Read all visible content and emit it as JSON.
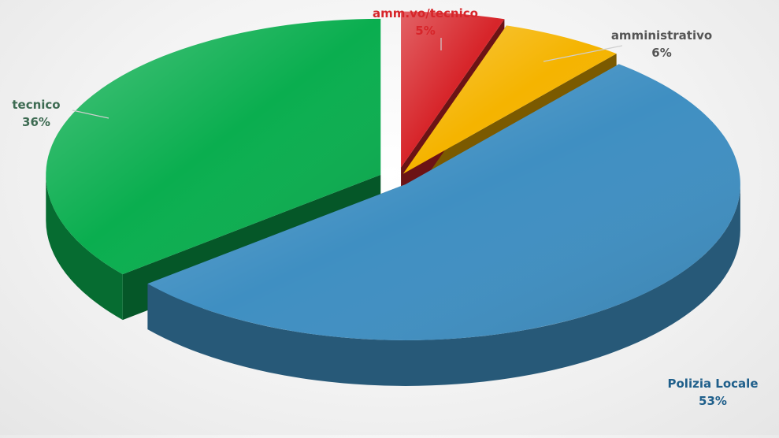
{
  "chart_data": {
    "type": "pie",
    "title": "",
    "slices": [
      {
        "label": "amm.vo/tecnico",
        "value": 5,
        "display": "5%",
        "color": "#d7252a",
        "label_color": "#d7252a"
      },
      {
        "label": "amministrativo",
        "value": 6,
        "display": "6%",
        "color": "#f5b400",
        "label_color": "#555555"
      },
      {
        "label": "Polizia Locale",
        "value": 53,
        "display": "53%",
        "color": "#3f8fc2",
        "label_color": "#1f5f8b"
      },
      {
        "label": "tecnico",
        "value": 36,
        "display": "36%",
        "color": "#0aae4f",
        "label_color": "#3d6b52"
      }
    ],
    "legend": "none",
    "three_d": true
  }
}
